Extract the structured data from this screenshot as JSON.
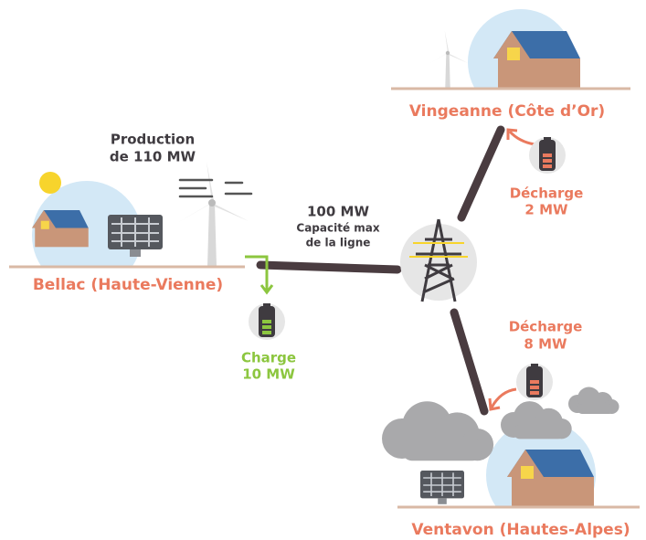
{
  "production": {
    "lines": [
      "Production",
      "de 110 MW"
    ]
  },
  "line": {
    "value": "100 MW",
    "caption": [
      "Capacité max",
      "de la ligne"
    ]
  },
  "nodes": [
    {
      "label": "Bellac (Haute-Vienne)"
    },
    {
      "label": "Vingeanne (Côte d’Or)"
    },
    {
      "label": "Ventavon (Hautes-Alpes)"
    }
  ],
  "batteries": [
    {
      "label": "Charge",
      "value": "10 MW"
    },
    {
      "label": "Décharge",
      "value": "2 MW"
    },
    {
      "label": "Décharge",
      "value": "8 MW"
    }
  ]
}
